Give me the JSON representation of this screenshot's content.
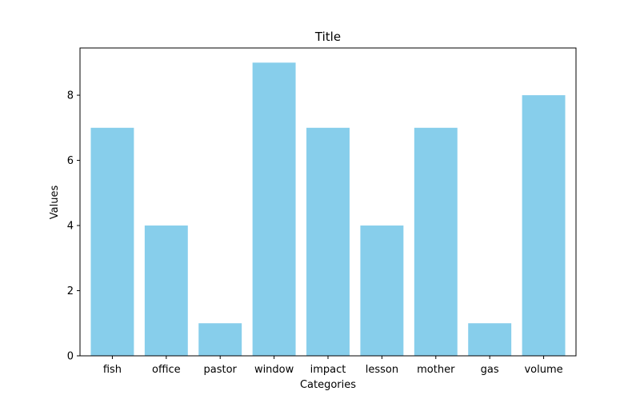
{
  "chart_data": {
    "type": "bar",
    "title": "Title",
    "xlabel": "Categories",
    "ylabel": "Values",
    "categories": [
      "fish",
      "office",
      "pastor",
      "window",
      "impact",
      "lesson",
      "mother",
      "gas",
      "volume"
    ],
    "values": [
      7,
      4,
      1,
      9,
      7,
      4,
      7,
      1,
      8
    ],
    "ylim": [
      0,
      9.45
    ],
    "yticks": [
      0,
      2,
      4,
      6,
      8
    ],
    "grid": false,
    "legend": "none",
    "colors": {
      "bar": "#87CEEB",
      "axis": "#000000",
      "background": "#ffffff"
    }
  }
}
